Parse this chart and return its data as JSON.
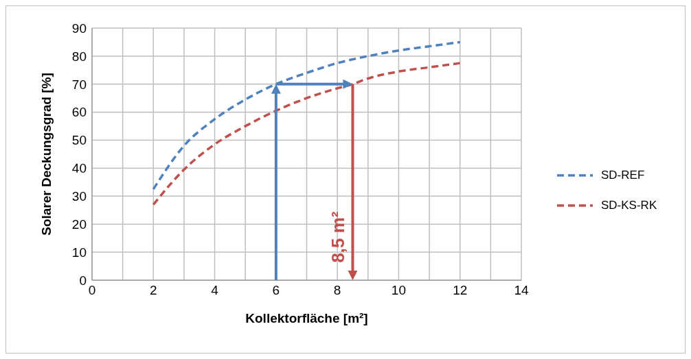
{
  "chart_data": {
    "type": "line",
    "xlabel": "Kollektorfläche [m²]",
    "ylabel": "Solarer Deckungsgrad [%]",
    "series": [
      {
        "name": "SD-REF",
        "color": "#4f81bd",
        "x": [
          2,
          3,
          4,
          5,
          6,
          7,
          8,
          9,
          10,
          11,
          12
        ],
        "values": [
          32.5,
          48,
          57.5,
          64.5,
          70,
          74,
          77.5,
          80,
          82,
          83.5,
          85
        ]
      },
      {
        "name": "SD-KS-RK",
        "color": "#c0504d",
        "x": [
          2,
          3,
          4,
          5,
          6,
          7,
          8,
          8.5,
          9,
          10,
          11,
          12
        ],
        "values": [
          27,
          39.5,
          48.5,
          55,
          60.5,
          65,
          68.5,
          70,
          72,
          74.5,
          76,
          77.5
        ]
      }
    ],
    "xlim": [
      0,
      14
    ],
    "xticks": [
      0,
      {
        "value": 1,
        "label": null
      },
      2,
      {
        "value": 3,
        "label": null
      },
      4,
      {
        "value": 5,
        "label": null
      },
      6,
      {
        "value": 7,
        "label": null
      },
      8,
      {
        "value": 9,
        "label": null
      },
      10,
      {
        "value": 11,
        "label": null
      },
      12,
      {
        "value": 13,
        "label": null
      },
      14
    ],
    "ylim": [
      0,
      90
    ],
    "yticks": [
      0,
      10,
      20,
      30,
      40,
      50,
      60,
      70,
      80,
      90
    ],
    "grid": true,
    "legend": "right",
    "marker": "none",
    "line_style": "dashed",
    "annotations": [
      "8,5 m²"
    ]
  }
}
